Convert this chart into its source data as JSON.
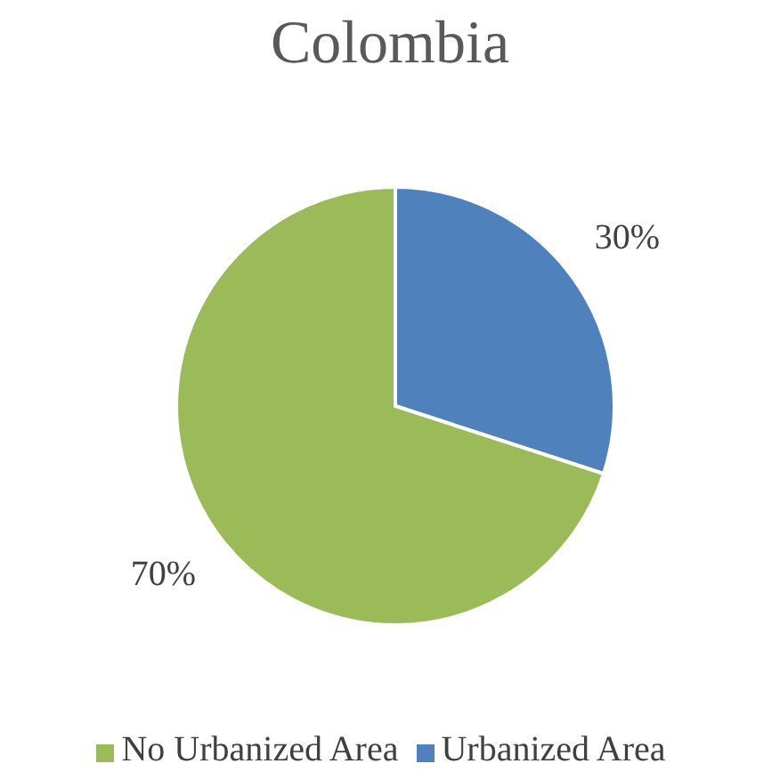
{
  "chart_data": {
    "type": "pie",
    "title": "Colombia",
    "categories": [
      "Urbanized Area",
      "No Urbanized Area"
    ],
    "values": [
      30,
      70
    ],
    "colors": [
      "#4f81bd",
      "#9bbb59"
    ],
    "value_labels": [
      "30%",
      "70%"
    ],
    "legend": "bottom"
  }
}
